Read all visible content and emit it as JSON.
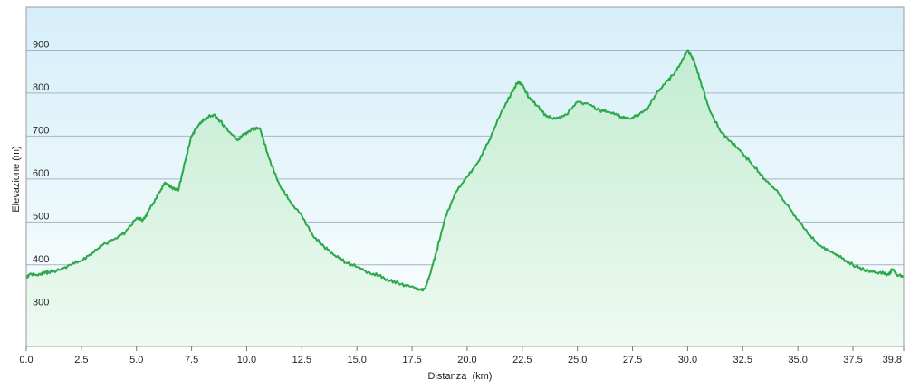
{
  "chart_data": {
    "type": "area",
    "xlabel": "Distanza  (km)",
    "ylabel": "Elevazione (m)",
    "xlim": [
      0,
      39.8
    ],
    "ylim": [
      210,
      1000
    ],
    "x_ticks": [
      "0.0",
      "2.5",
      "5.0",
      "7.5",
      "10.0",
      "12.5",
      "15.0",
      "17.5",
      "20.0",
      "22.5",
      "25.0",
      "27.5",
      "30.0",
      "32.5",
      "35.0",
      "37.5",
      "39.8"
    ],
    "y_ticks": [
      "300",
      "400",
      "500",
      "600",
      "700",
      "800",
      "900"
    ],
    "grid": true,
    "legend": "none",
    "series": [
      {
        "x": [
          0.0,
          0.2,
          0.5,
          0.8,
          1.0,
          1.5,
          2.0,
          2.5,
          3.0,
          3.5,
          4.0,
          4.5,
          5.0,
          5.3,
          5.6,
          6.0,
          6.3,
          6.6,
          6.9,
          7.2,
          7.5,
          7.8,
          8.1,
          8.5,
          8.8,
          9.2,
          9.6,
          9.9,
          10.2,
          10.6,
          11.0,
          11.5,
          12.0,
          12.5,
          13.0,
          13.5,
          14.0,
          14.5,
          15.0,
          15.5,
          16.0,
          16.5,
          17.0,
          17.5,
          17.9,
          18.1,
          18.3,
          18.6,
          19.0,
          19.5,
          20.0,
          20.5,
          21.0,
          21.5,
          22.0,
          22.3,
          22.5,
          22.8,
          23.2,
          23.6,
          24.0,
          24.5,
          25.0,
          25.5,
          26.0,
          26.5,
          27.0,
          27.4,
          27.8,
          28.2,
          28.6,
          29.0,
          29.4,
          29.8,
          30.0,
          30.3,
          30.6,
          31.0,
          31.5,
          32.0,
          32.5,
          33.0,
          33.5,
          34.0,
          34.5,
          35.0,
          35.5,
          36.0,
          36.5,
          37.0,
          37.5,
          38.0,
          38.5,
          38.9,
          39.1,
          39.3,
          39.5,
          39.8
        ],
        "y": [
          372,
          380,
          376,
          382,
          383,
          388,
          400,
          410,
          428,
          448,
          460,
          476,
          508,
          505,
          530,
          565,
          592,
          580,
          573,
          640,
          700,
          725,
          740,
          750,
          735,
          710,
          690,
          705,
          715,
          718,
          650,
          585,
          545,
          515,
          468,
          443,
          422,
          405,
          395,
          383,
          375,
          363,
          355,
          350,
          342,
          345,
          375,
          430,
          510,
          570,
          605,
          640,
          690,
          750,
          800,
          825,
          820,
          790,
          770,
          745,
          740,
          750,
          780,
          775,
          760,
          755,
          745,
          740,
          750,
          765,
          800,
          825,
          845,
          880,
          900,
          875,
          825,
          760,
          710,
          685,
          660,
          630,
          600,
          575,
          540,
          505,
          470,
          445,
          430,
          415,
          400,
          388,
          382,
          380,
          377,
          390,
          377,
          373
        ]
      }
    ]
  }
}
